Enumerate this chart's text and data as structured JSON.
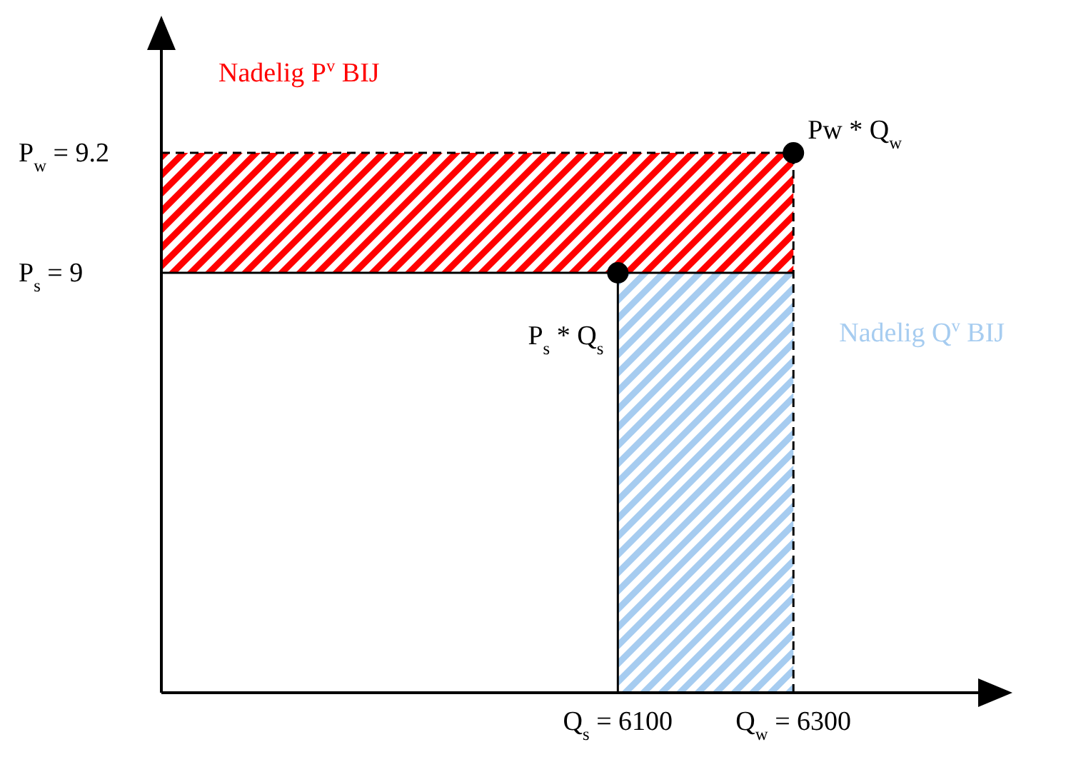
{
  "chart_data": {
    "type": "scatter",
    "x": [
      6100,
      6300
    ],
    "series": [
      {
        "color": "#000000",
        "values": [
          9,
          9.2
        ]
      }
    ],
    "xlim": [
      5580,
      6530
    ],
    "ylim": [
      8.3,
      9.4
    ],
    "xticks": [
      {
        "value": 6100,
        "label": "Q$_{s}$ = 6100"
      },
      {
        "value": 6300,
        "label": "Q$_{w}$ = 6300"
      }
    ],
    "yticks": [
      {
        "value": 9,
        "label": "P$_{s}$ = 9"
      },
      {
        "value": 9.2,
        "label": "P$_{w}$ = 9.2"
      }
    ],
    "bands": [
      {
        "axis": "y",
        "from": 9,
        "to": 9.2,
        "label": "Nadelig P$^{v}$ BIJ",
        "color": "#ff0000"
      },
      {
        "axis": "x",
        "from": 6100,
        "to": 6300,
        "label": "Nadelig Q$^{v}$ BIJ",
        "color": "#a6ccf0"
      }
    ],
    "ref_lines": [
      {
        "axis": "y",
        "value": 9.2,
        "line_style": "dashed"
      },
      {
        "axis": "x",
        "value": 6300,
        "line_style": "dashed"
      },
      {
        "axis": "y",
        "value": 9,
        "line_style": "solid"
      },
      {
        "axis": "x",
        "value": 6100,
        "line_style": "solid"
      }
    ],
    "annotations": [
      {
        "text": "P$_{s}$ * Q$_{s}$",
        "x": 6100,
        "y": 9
      },
      {
        "text": "Pw * Q$_{w}$",
        "x": 6300,
        "y": 9.2
      }
    ],
    "marker": "circle",
    "grid": false,
    "legend": false
  }
}
